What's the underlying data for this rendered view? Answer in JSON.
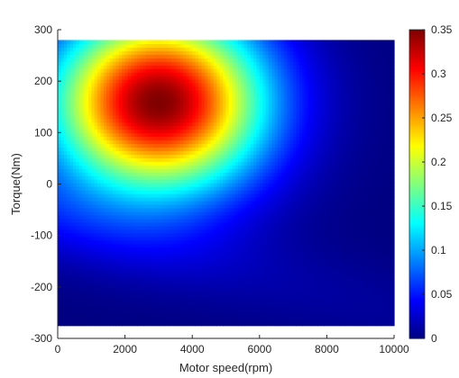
{
  "chart_data": {
    "type": "heatmap",
    "title": "",
    "xlabel": "Motor speed(rpm)",
    "ylabel": "Torque(Nm)",
    "xlim": [
      0,
      10000
    ],
    "ylim": [
      -300,
      300
    ],
    "data_extent": {
      "speed_rpm": [
        0,
        10000
      ],
      "torque_nm": [
        -275,
        280
      ]
    },
    "x_ticks": [
      0,
      2000,
      4000,
      6000,
      8000,
      10000
    ],
    "y_ticks": [
      -300,
      -200,
      -100,
      0,
      100,
      200,
      300
    ],
    "colorbar": {
      "colormap": "jet",
      "range": [
        0,
        0.35
      ],
      "ticks": [
        0,
        0.05,
        0.1,
        0.15,
        0.2,
        0.25,
        0.3,
        0.35
      ],
      "tick_labels": [
        "0",
        "0.05",
        "0.1",
        "0.15",
        "0.2",
        "0.25",
        "0.3",
        "0.35"
      ]
    },
    "peak": {
      "speed_rpm": 3000,
      "torque_nm": 160,
      "value": 0.35
    },
    "field_samples": [
      {
        "speed_rpm": 3000,
        "torque_nm": 160,
        "value": 0.35
      },
      {
        "speed_rpm": 3000,
        "torque_nm": 80,
        "value": 0.3
      },
      {
        "speed_rpm": 3000,
        "torque_nm": 20,
        "value": 0.2
      },
      {
        "speed_rpm": 3000,
        "torque_nm": -50,
        "value": 0.12
      },
      {
        "speed_rpm": 3000,
        "torque_nm": -150,
        "value": 0.06
      },
      {
        "speed_rpm": 5000,
        "torque_nm": 160,
        "value": 0.23
      },
      {
        "speed_rpm": 6500,
        "torque_nm": 160,
        "value": 0.1
      },
      {
        "speed_rpm": 8000,
        "torque_nm": 100,
        "value": 0.05
      },
      {
        "speed_rpm": 500,
        "torque_nm": 160,
        "value": 0.22
      },
      {
        "speed_rpm": 9000,
        "torque_nm": -200,
        "value": 0.005
      }
    ],
    "grid": false
  }
}
